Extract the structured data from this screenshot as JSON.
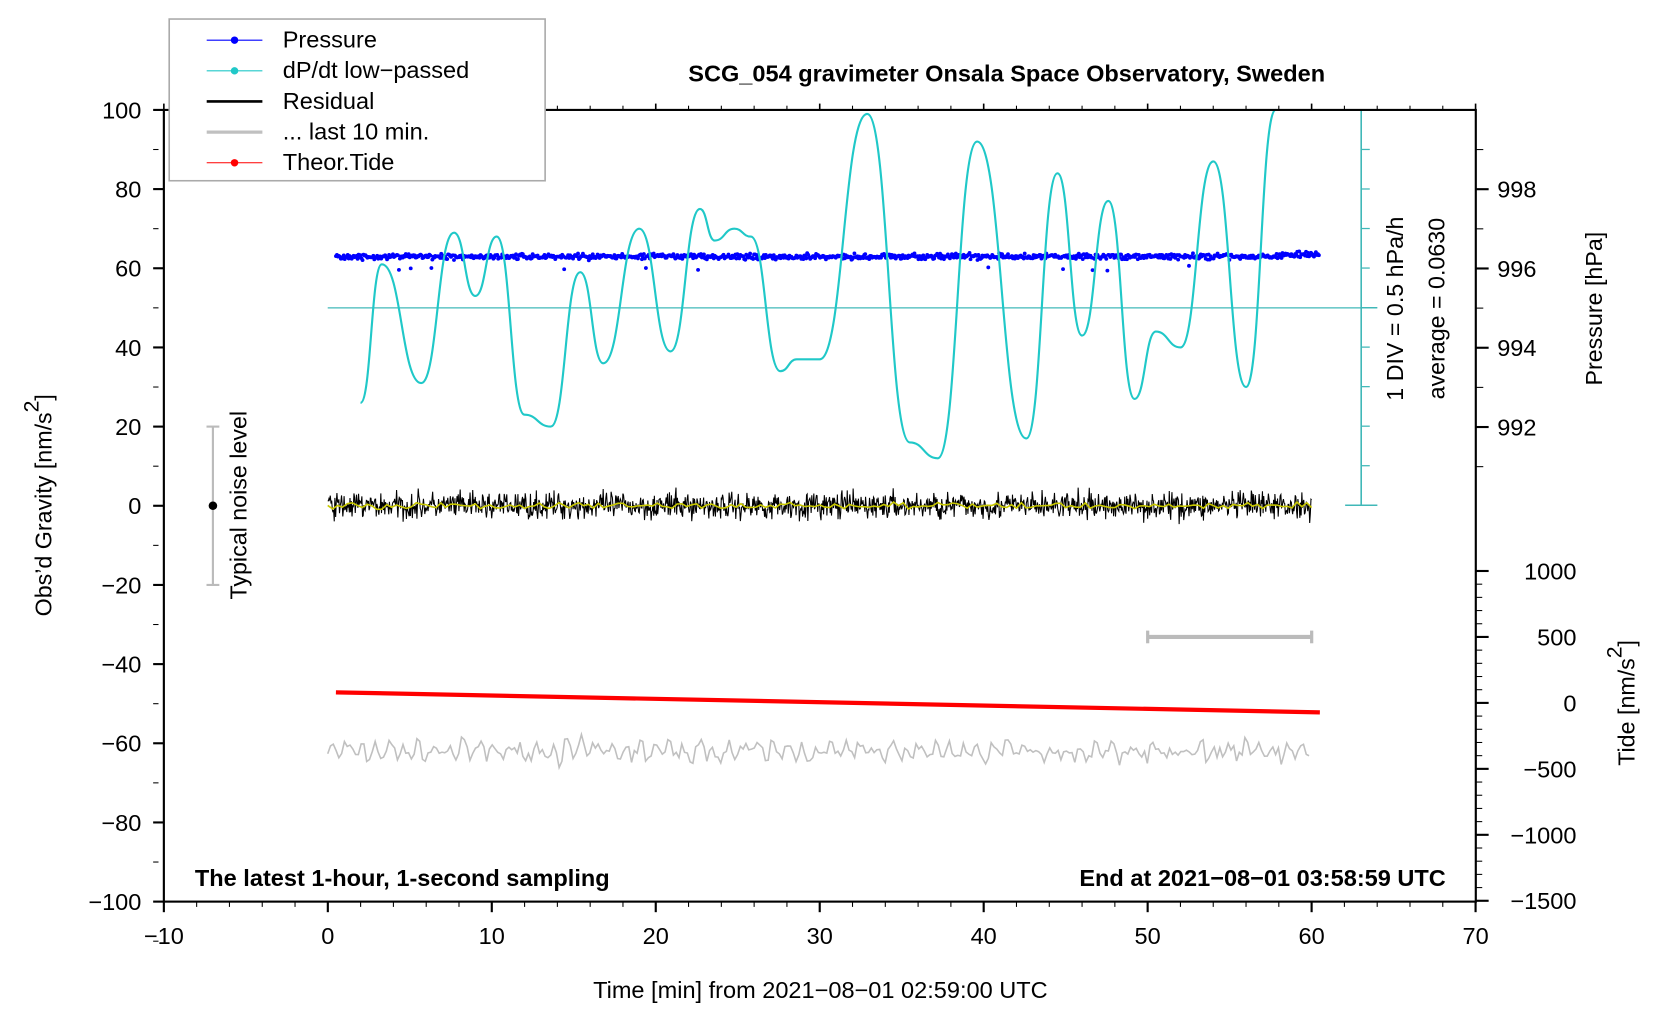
{
  "chart_data": {
    "type": "line",
    "title": "SCG_054 gravimeter Onsala Space Observatory, Sweden",
    "xlabel": "Time [min] from 2021−08−01 02:59:00 UTC",
    "ylabel": "Obs’d Gravity [nm/s",
    "ylabel_sup": "2",
    "ylabel_end": "]",
    "y2label": "Pressure [hPa]",
    "y3label": "Tide [nm/s",
    "y3label_sup": "2",
    "y3label_end": "]",
    "xlim": [
      -10,
      70
    ],
    "ylim": [
      -100,
      100
    ],
    "y2lim_visible": [
      991,
      999
    ],
    "y3lim": [
      -1500,
      1000
    ],
    "xticks": [
      "−10",
      "0",
      "10",
      "20",
      "30",
      "40",
      "50",
      "60",
      "70"
    ],
    "yticks": [
      "100",
      "80",
      "60",
      "40",
      "20",
      "0",
      "−20",
      "−40",
      "−60",
      "−80",
      "−100"
    ],
    "y2ticks": [
      "998",
      "996",
      "994",
      "992"
    ],
    "y3ticks": [
      "1000",
      "500",
      "0",
      "−500",
      "−1000",
      "−1500"
    ],
    "legend": {
      "placement": "top-left",
      "entries": [
        "Pressure",
        "dP/dt low−passed",
        "Residual",
        "... last 10 min.",
        "Theor.Tide"
      ]
    },
    "annotations": {
      "bottom_left": "The latest 1-hour, 1-second sampling",
      "bottom_right": "End at 2021−08−01 03:58:59 UTC",
      "div_label": "1 DIV = 0.5 hPa/h",
      "average_label": "average = 0.0630",
      "noise_label": "Typical noise level"
    },
    "series": [
      {
        "name": "Pressure",
        "axis": "hPa",
        "color": "#0000ff",
        "x_range": [
          0.5,
          60.5
        ],
        "mean": 996.3
      },
      {
        "name": "dP/dt low-passed",
        "axis": "gravity-scale",
        "color": "#20c8c8",
        "x": [
          2,
          3.3,
          5.7,
          7.7,
          9,
          10.3,
          12,
          13.6,
          15.4,
          16.8,
          19,
          20.9,
          22.7,
          23.6,
          24.8,
          25.8,
          27.6,
          28.6,
          30,
          32.9,
          35.5,
          37.2,
          39.6,
          42.6,
          44.5,
          46,
          47.6,
          49.2,
          50.5,
          52,
          54,
          56,
          57.8
        ],
        "y": [
          26,
          61,
          31,
          69,
          53,
          68,
          23,
          20,
          59,
          36,
          70,
          39,
          75,
          67,
          70,
          68,
          34,
          37,
          37,
          99,
          16,
          12,
          92,
          17,
          84,
          43,
          77,
          27,
          44,
          40,
          87,
          30,
          100
        ]
      },
      {
        "name": "Residual",
        "axis": "nm/s2",
        "color": "#000000",
        "x_range": [
          0,
          60
        ],
        "mean": 0
      },
      {
        "name": "... last 10 min.",
        "axis": "nm/s2",
        "color": "#c0c0c0",
        "x_range": [
          0,
          60
        ],
        "mean": -62
      },
      {
        "name": "Theor.Tide",
        "axis": "tide nm/s2",
        "color": "#ff0000",
        "x": [
          0.5,
          60.5
        ],
        "y": [
          80,
          -72
        ]
      }
    ],
    "dpdt_zero_line": 50,
    "noise_bar": {
      "x": -7,
      "y": [
        -20,
        20
      ]
    },
    "ten_min_bar": {
      "x": [
        50,
        60
      ],
      "tide": 500
    }
  }
}
